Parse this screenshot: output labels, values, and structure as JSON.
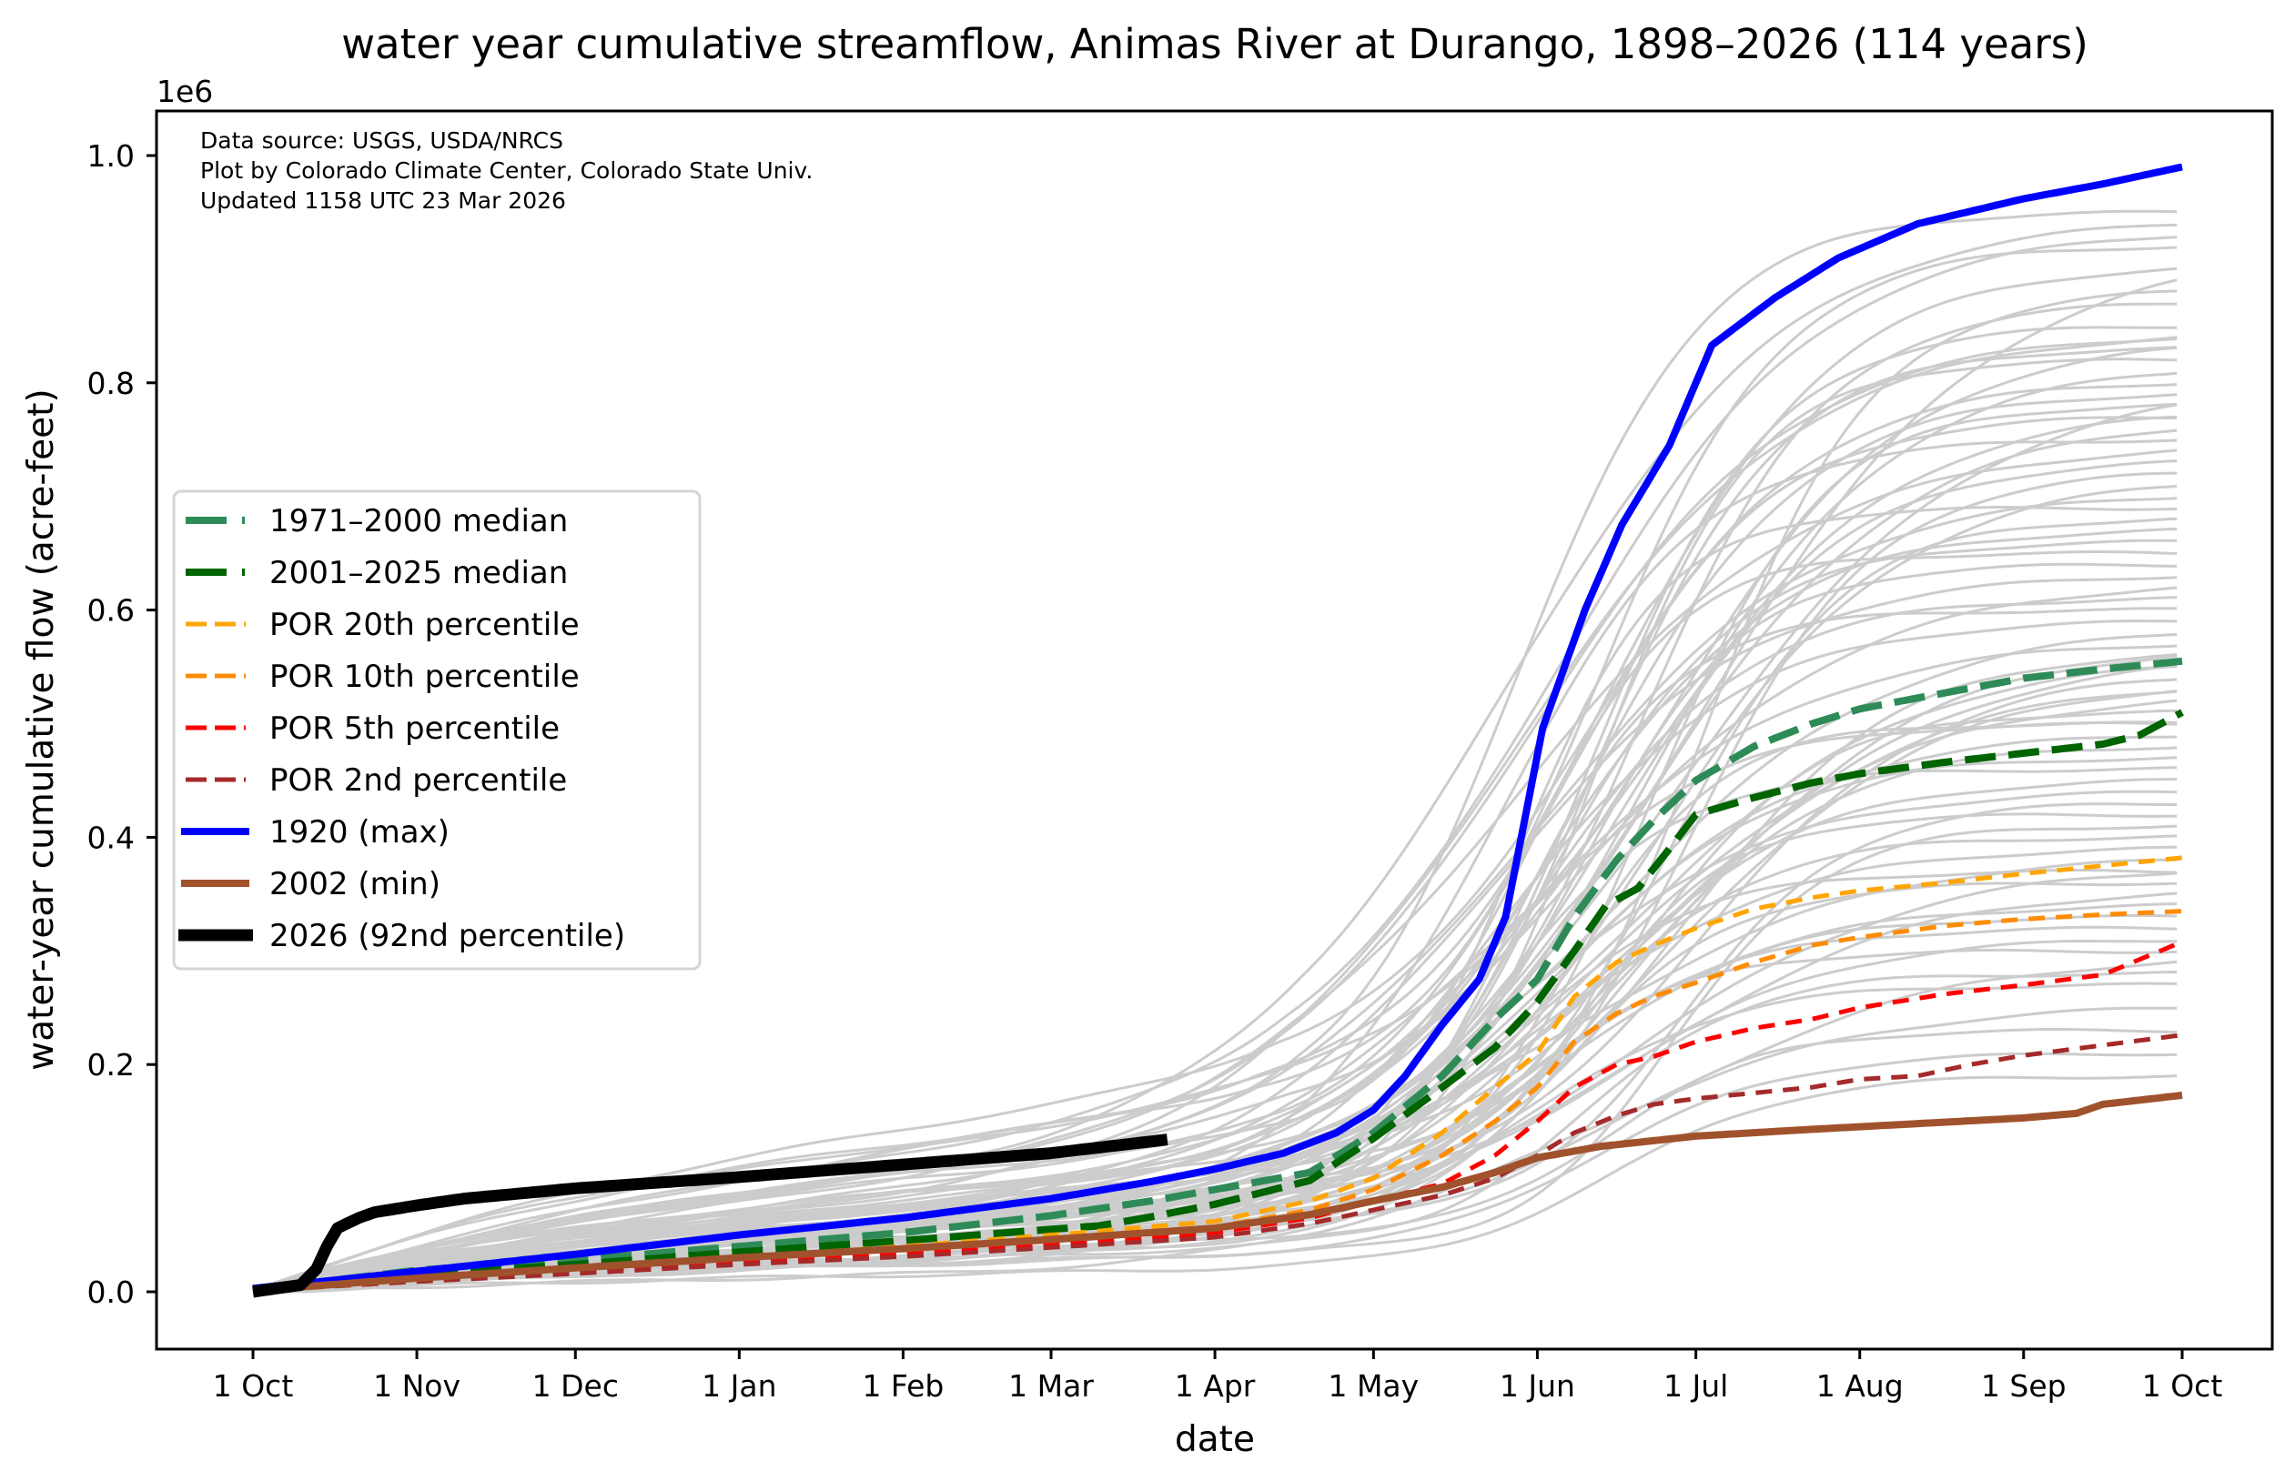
{
  "chart_data": {
    "type": "line",
    "title": "water year cumulative streamflow, Animas River at Durango, 1898–2026 (114 years)",
    "xlabel": "date",
    "ylabel": "water-year cumulative flow (acre-feet)",
    "y_offset_label": "1e6",
    "y_scale_multiplier": 1000000,
    "x_unit": "days since 1 Oct (water year day)",
    "xlim": [
      -11,
      380
    ],
    "ylim": [
      -0.05,
      1.04
    ],
    "x_ticks": [
      {
        "day": 0,
        "label": "1 Oct"
      },
      {
        "day": 31,
        "label": "1 Nov"
      },
      {
        "day": 61,
        "label": "1 Dec"
      },
      {
        "day": 92,
        "label": "1 Jan"
      },
      {
        "day": 123,
        "label": "1 Feb"
      },
      {
        "day": 151,
        "label": "1 Mar"
      },
      {
        "day": 182,
        "label": "1 Apr"
      },
      {
        "day": 212,
        "label": "1 May"
      },
      {
        "day": 243,
        "label": "1 Jun"
      },
      {
        "day": 273,
        "label": "1 Jul"
      },
      {
        "day": 304,
        "label": "1 Aug"
      },
      {
        "day": 335,
        "label": "1 Sep"
      },
      {
        "day": 365,
        "label": "1 Oct"
      }
    ],
    "y_ticks": [
      {
        "value": 0.0,
        "label": "0.0"
      },
      {
        "value": 0.2,
        "label": "0.2"
      },
      {
        "value": 0.4,
        "label": "0.4"
      },
      {
        "value": 0.6,
        "label": "0.6"
      },
      {
        "value": 0.8,
        "label": "0.8"
      },
      {
        "value": 1.0,
        "label": "1.0"
      }
    ],
    "grid": false,
    "legend_placement": "center-left",
    "annotation_lines": [
      "Data source: USGS, USDA/NRCS",
      "Plot by Colorado Climate Center, Colorado State Univ.",
      "Updated 1158 UTC 23 Mar 2026"
    ],
    "historical_years": {
      "count": 114,
      "color": "#cccccc",
      "final_values_sample": [
        0.95,
        0.94,
        0.93,
        0.92,
        0.9,
        0.89,
        0.88,
        0.87,
        0.85,
        0.84,
        0.84,
        0.83,
        0.83,
        0.82,
        0.81,
        0.8,
        0.79,
        0.78,
        0.78,
        0.77,
        0.77,
        0.76,
        0.75,
        0.74,
        0.73,
        0.72,
        0.71,
        0.7,
        0.69,
        0.68,
        0.67,
        0.66,
        0.65,
        0.64,
        0.63,
        0.62,
        0.61,
        0.6,
        0.59,
        0.58,
        0.57,
        0.56,
        0.56,
        0.55,
        0.55,
        0.54,
        0.53,
        0.53,
        0.52,
        0.51,
        0.5,
        0.5,
        0.49,
        0.48,
        0.47,
        0.46,
        0.45,
        0.44,
        0.43,
        0.42,
        0.41,
        0.4,
        0.39,
        0.38,
        0.37,
        0.37,
        0.36,
        0.35,
        0.34,
        0.33,
        0.32,
        0.31,
        0.3,
        0.29,
        0.28,
        0.27,
        0.25,
        0.23,
        0.21,
        0.19
      ]
    },
    "series": [
      {
        "name": "1971–2000 median",
        "color": "#2e8b57",
        "style": "dashed",
        "width": "thick",
        "points": [
          [
            0,
            0.003
          ],
          [
            15,
            0.01
          ],
          [
            31,
            0.019
          ],
          [
            61,
            0.028
          ],
          [
            92,
            0.04
          ],
          [
            123,
            0.052
          ],
          [
            151,
            0.067
          ],
          [
            170,
            0.08
          ],
          [
            182,
            0.09
          ],
          [
            200,
            0.105
          ],
          [
            212,
            0.14
          ],
          [
            225,
            0.19
          ],
          [
            235,
            0.24
          ],
          [
            243,
            0.275
          ],
          [
            250,
            0.33
          ],
          [
            258,
            0.38
          ],
          [
            265,
            0.415
          ],
          [
            273,
            0.45
          ],
          [
            284,
            0.48
          ],
          [
            295,
            0.5
          ],
          [
            304,
            0.513
          ],
          [
            320,
            0.527
          ],
          [
            335,
            0.54
          ],
          [
            350,
            0.548
          ],
          [
            365,
            0.555
          ]
        ]
      },
      {
        "name": "2001–2025 median",
        "color": "#006400",
        "style": "dashed",
        "width": "thick",
        "points": [
          [
            0,
            0.002
          ],
          [
            15,
            0.008
          ],
          [
            31,
            0.015
          ],
          [
            61,
            0.024
          ],
          [
            92,
            0.035
          ],
          [
            123,
            0.045
          ],
          [
            151,
            0.055
          ],
          [
            160,
            0.058
          ],
          [
            170,
            0.066
          ],
          [
            182,
            0.077
          ],
          [
            200,
            0.098
          ],
          [
            212,
            0.135
          ],
          [
            225,
            0.18
          ],
          [
            235,
            0.215
          ],
          [
            243,
            0.255
          ],
          [
            250,
            0.3
          ],
          [
            256,
            0.34
          ],
          [
            262,
            0.355
          ],
          [
            268,
            0.39
          ],
          [
            273,
            0.42
          ],
          [
            284,
            0.435
          ],
          [
            295,
            0.448
          ],
          [
            304,
            0.456
          ],
          [
            320,
            0.466
          ],
          [
            335,
            0.474
          ],
          [
            350,
            0.482
          ],
          [
            357,
            0.49
          ],
          [
            365,
            0.51
          ]
        ]
      },
      {
        "name": "POR 20th percentile",
        "color": "#ffa500",
        "style": "dashed",
        "width": "medium",
        "points": [
          [
            0,
            0.001
          ],
          [
            31,
            0.012
          ],
          [
            61,
            0.02
          ],
          [
            92,
            0.03
          ],
          [
            123,
            0.04
          ],
          [
            151,
            0.05
          ],
          [
            182,
            0.062
          ],
          [
            200,
            0.08
          ],
          [
            212,
            0.1
          ],
          [
            225,
            0.14
          ],
          [
            235,
            0.18
          ],
          [
            243,
            0.21
          ],
          [
            250,
            0.26
          ],
          [
            258,
            0.29
          ],
          [
            265,
            0.305
          ],
          [
            273,
            0.32
          ],
          [
            284,
            0.337
          ],
          [
            295,
            0.347
          ],
          [
            304,
            0.353
          ],
          [
            320,
            0.36
          ],
          [
            335,
            0.368
          ],
          [
            350,
            0.375
          ],
          [
            365,
            0.382
          ]
        ]
      },
      {
        "name": "POR 10th percentile",
        "color": "#ff8c00",
        "style": "dashed",
        "width": "medium",
        "points": [
          [
            0,
            0.001
          ],
          [
            31,
            0.011
          ],
          [
            61,
            0.019
          ],
          [
            92,
            0.028
          ],
          [
            123,
            0.037
          ],
          [
            151,
            0.046
          ],
          [
            182,
            0.057
          ],
          [
            200,
            0.072
          ],
          [
            212,
            0.09
          ],
          [
            225,
            0.12
          ],
          [
            235,
            0.15
          ],
          [
            243,
            0.18
          ],
          [
            250,
            0.22
          ],
          [
            258,
            0.245
          ],
          [
            265,
            0.26
          ],
          [
            273,
            0.272
          ],
          [
            284,
            0.29
          ],
          [
            295,
            0.305
          ],
          [
            304,
            0.312
          ],
          [
            320,
            0.322
          ],
          [
            335,
            0.328
          ],
          [
            350,
            0.332
          ],
          [
            365,
            0.335
          ]
        ]
      },
      {
        "name": "POR 5th percentile",
        "color": "#ff0000",
        "style": "dashed",
        "width": "medium",
        "points": [
          [
            0,
            0.001
          ],
          [
            31,
            0.01
          ],
          [
            61,
            0.018
          ],
          [
            92,
            0.026
          ],
          [
            123,
            0.034
          ],
          [
            151,
            0.042
          ],
          [
            182,
            0.052
          ],
          [
            200,
            0.065
          ],
          [
            212,
            0.08
          ],
          [
            225,
            0.095
          ],
          [
            235,
            0.12
          ],
          [
            243,
            0.15
          ],
          [
            250,
            0.18
          ],
          [
            258,
            0.2
          ],
          [
            265,
            0.207
          ],
          [
            273,
            0.22
          ],
          [
            284,
            0.232
          ],
          [
            295,
            0.24
          ],
          [
            304,
            0.25
          ],
          [
            320,
            0.262
          ],
          [
            335,
            0.27
          ],
          [
            350,
            0.279
          ],
          [
            365,
            0.308
          ]
        ]
      },
      {
        "name": "POR 2nd percentile",
        "color": "#a52a2a",
        "style": "dashed",
        "width": "medium",
        "points": [
          [
            0,
            0.001
          ],
          [
            31,
            0.009
          ],
          [
            61,
            0.016
          ],
          [
            92,
            0.024
          ],
          [
            123,
            0.031
          ],
          [
            151,
            0.039
          ],
          [
            182,
            0.048
          ],
          [
            200,
            0.06
          ],
          [
            212,
            0.072
          ],
          [
            225,
            0.085
          ],
          [
            235,
            0.1
          ],
          [
            243,
            0.12
          ],
          [
            250,
            0.14
          ],
          [
            258,
            0.155
          ],
          [
            265,
            0.165
          ],
          [
            273,
            0.17
          ],
          [
            284,
            0.175
          ],
          [
            295,
            0.18
          ],
          [
            304,
            0.187
          ],
          [
            315,
            0.19
          ],
          [
            325,
            0.2
          ],
          [
            335,
            0.208
          ],
          [
            350,
            0.217
          ],
          [
            365,
            0.226
          ]
        ]
      },
      {
        "name": "1920 (max)",
        "color": "#0000ff",
        "style": "solid",
        "width": "thick",
        "points": [
          [
            0,
            0.003
          ],
          [
            15,
            0.01
          ],
          [
            31,
            0.018
          ],
          [
            61,
            0.033
          ],
          [
            92,
            0.05
          ],
          [
            123,
            0.065
          ],
          [
            151,
            0.082
          ],
          [
            170,
            0.097
          ],
          [
            182,
            0.108
          ],
          [
            195,
            0.122
          ],
          [
            205,
            0.14
          ],
          [
            212,
            0.16
          ],
          [
            218,
            0.19
          ],
          [
            225,
            0.235
          ],
          [
            232,
            0.275
          ],
          [
            237,
            0.33
          ],
          [
            244,
            0.496
          ],
          [
            252,
            0.6
          ],
          [
            259,
            0.675
          ],
          [
            268,
            0.745
          ],
          [
            276,
            0.833
          ],
          [
            288,
            0.875
          ],
          [
            300,
            0.91
          ],
          [
            315,
            0.94
          ],
          [
            335,
            0.962
          ],
          [
            350,
            0.975
          ],
          [
            365,
            0.99
          ]
        ]
      },
      {
        "name": "2002 (min)",
        "color": "#a0522d",
        "style": "solid",
        "width": "thick",
        "points": [
          [
            0,
            0.001
          ],
          [
            31,
            0.012
          ],
          [
            61,
            0.021
          ],
          [
            92,
            0.03
          ],
          [
            123,
            0.038
          ],
          [
            151,
            0.046
          ],
          [
            182,
            0.056
          ],
          [
            200,
            0.068
          ],
          [
            212,
            0.08
          ],
          [
            225,
            0.092
          ],
          [
            235,
            0.105
          ],
          [
            243,
            0.118
          ],
          [
            255,
            0.128
          ],
          [
            273,
            0.137
          ],
          [
            295,
            0.143
          ],
          [
            315,
            0.148
          ],
          [
            335,
            0.153
          ],
          [
            345,
            0.157
          ],
          [
            350,
            0.165
          ],
          [
            365,
            0.173
          ]
        ]
      },
      {
        "name": "2026 (92nd percentile)",
        "color": "#000000",
        "style": "solid",
        "width": "extra-thick",
        "points": [
          [
            0,
            0.0
          ],
          [
            9,
            0.006
          ],
          [
            12,
            0.02
          ],
          [
            14,
            0.04
          ],
          [
            16,
            0.056
          ],
          [
            20,
            0.065
          ],
          [
            23,
            0.07
          ],
          [
            31,
            0.076
          ],
          [
            40,
            0.082
          ],
          [
            61,
            0.091
          ],
          [
            92,
            0.101
          ],
          [
            123,
            0.112
          ],
          [
            151,
            0.122
          ],
          [
            173,
            0.134
          ]
        ]
      }
    ]
  }
}
